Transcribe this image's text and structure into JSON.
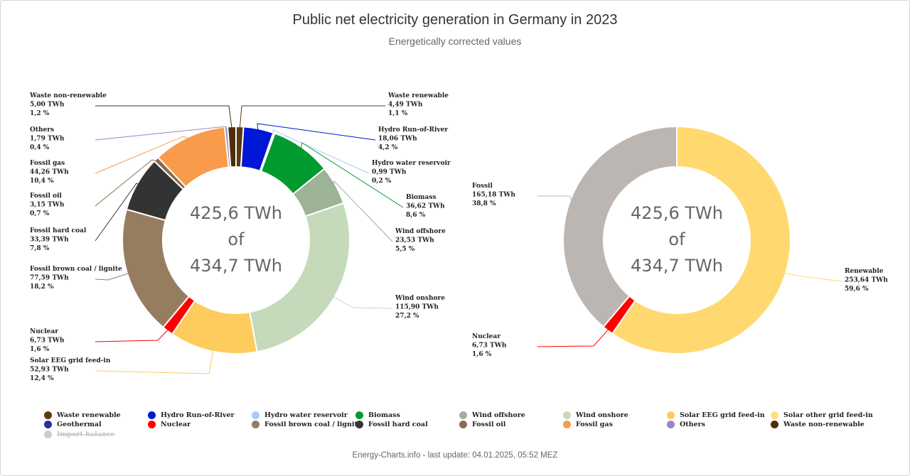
{
  "title": "Public net electricity generation in Germany in 2023",
  "subtitle": "Energetically corrected values",
  "footer": "Energy-Charts.info - last update: 04.01.2025, 05:52 MEZ",
  "chart_data": [
    {
      "type": "pie",
      "variant": "donut",
      "center_text": [
        "425,6 TWh",
        "of",
        "434,7 TWh"
      ],
      "unit": "TWh",
      "series": [
        {
          "name": "Waste renewable",
          "value": 4.49,
          "value_label": "4,49 TWh",
          "percent_label": "1,1 %",
          "color": "#5a3a10"
        },
        {
          "name": "Hydro Run-of-River",
          "value": 18.06,
          "value_label": "18,06 TWh",
          "percent_label": "4,2 %",
          "color": "#0018d6"
        },
        {
          "name": "Hydro water reservoir",
          "value": 0.99,
          "value_label": "0,99 TWh",
          "percent_label": "0,2 %",
          "color": "#adc8f5"
        },
        {
          "name": "Biomass",
          "value": 36.62,
          "value_label": "36,62 TWh",
          "percent_label": "8,6 %",
          "color": "#009a2e"
        },
        {
          "name": "Wind offshore",
          "value": 23.53,
          "value_label": "23,53 TWh",
          "percent_label": "5,5 %",
          "color": "#9cb396"
        },
        {
          "name": "Wind onshore",
          "value": 115.9,
          "value_label": "115,90 TWh",
          "percent_label": "27,2 %",
          "color": "#c4dabb"
        },
        {
          "name": "Solar EEG grid feed-in",
          "value": 52.93,
          "value_label": "52,93 TWh",
          "percent_label": "12,4 %",
          "color": "#fecc5c"
        },
        {
          "name": "Nuclear",
          "value": 6.73,
          "value_label": "6,73 TWh",
          "percent_label": "1,6 %",
          "color": "#ff0000"
        },
        {
          "name": "Fossil brown coal / lignite",
          "value": 77.59,
          "value_label": "77,59 TWh",
          "percent_label": "18,2 %",
          "color": "#977d60"
        },
        {
          "name": "Fossil hard coal",
          "value": 33.39,
          "value_label": "33,39 TWh",
          "percent_label": "7,8 %",
          "color": "#333333"
        },
        {
          "name": "Fossil oil",
          "value": 3.15,
          "value_label": "3,15 TWh",
          "percent_label": "0,7 %",
          "color": "#8b6b4f"
        },
        {
          "name": "Fossil gas",
          "value": 44.26,
          "value_label": "44,26 TWh",
          "percent_label": "10,4 %",
          "color": "#f99b4b"
        },
        {
          "name": "Others",
          "value": 1.79,
          "value_label": "1,79 TWh",
          "percent_label": "0,4 %",
          "color": "#9b86c3"
        },
        {
          "name": "Waste non-renewable",
          "value": 5.0,
          "value_label": "5,00 TWh",
          "percent_label": "1,2 %",
          "color": "#4f2e08"
        }
      ]
    },
    {
      "type": "pie",
      "variant": "donut",
      "center_text": [
        "425,6 TWh",
        "of",
        "434,7 TWh"
      ],
      "unit": "TWh",
      "series": [
        {
          "name": "Renewable",
          "value": 253.64,
          "value_label": "253,64 TWh",
          "percent_label": "59,6 %",
          "color": "#ffd96f"
        },
        {
          "name": "Nuclear",
          "value": 6.73,
          "value_label": "6,73 TWh",
          "percent_label": "1,6 %",
          "color": "#ff0000"
        },
        {
          "name": "Fossil",
          "value": 165.18,
          "value_label": "165,18 TWh",
          "percent_label": "38,8 %",
          "color": "#bbb6b2"
        }
      ]
    }
  ],
  "legend": [
    {
      "name": "Waste renewable",
      "color": "#5a3a10",
      "hidden": false
    },
    {
      "name": "Hydro Run-of-River",
      "color": "#0018d6",
      "hidden": false
    },
    {
      "name": "Hydro water reservoir",
      "color": "#adc8f5",
      "hidden": false
    },
    {
      "name": "Biomass",
      "color": "#009a2e",
      "hidden": false
    },
    {
      "name": "Wind offshore",
      "color": "#9cb396",
      "hidden": false
    },
    {
      "name": "Wind onshore",
      "color": "#c4dabb",
      "hidden": false
    },
    {
      "name": "Solar EEG grid feed-in",
      "color": "#fecc5c",
      "hidden": false
    },
    {
      "name": "Solar other grid feed-in",
      "color": "#ffe07a",
      "hidden": false
    },
    {
      "name": "Geothermal",
      "color": "#2c2f9b",
      "hidden": false
    },
    {
      "name": "Nuclear",
      "color": "#ff0000",
      "hidden": false
    },
    {
      "name": "Fossil brown coal / lignite",
      "color": "#977d60",
      "hidden": false
    },
    {
      "name": "Fossil hard coal",
      "color": "#333333",
      "hidden": false
    },
    {
      "name": "Fossil oil",
      "color": "#8b6b4f",
      "hidden": false
    },
    {
      "name": "Fossil gas",
      "color": "#f99b4b",
      "hidden": false
    },
    {
      "name": "Others",
      "color": "#9b86c3",
      "hidden": false
    },
    {
      "name": "Waste non-renewable",
      "color": "#4f2e08",
      "hidden": false
    },
    {
      "name": "Import balance",
      "color": "#cccccc",
      "hidden": true
    }
  ]
}
